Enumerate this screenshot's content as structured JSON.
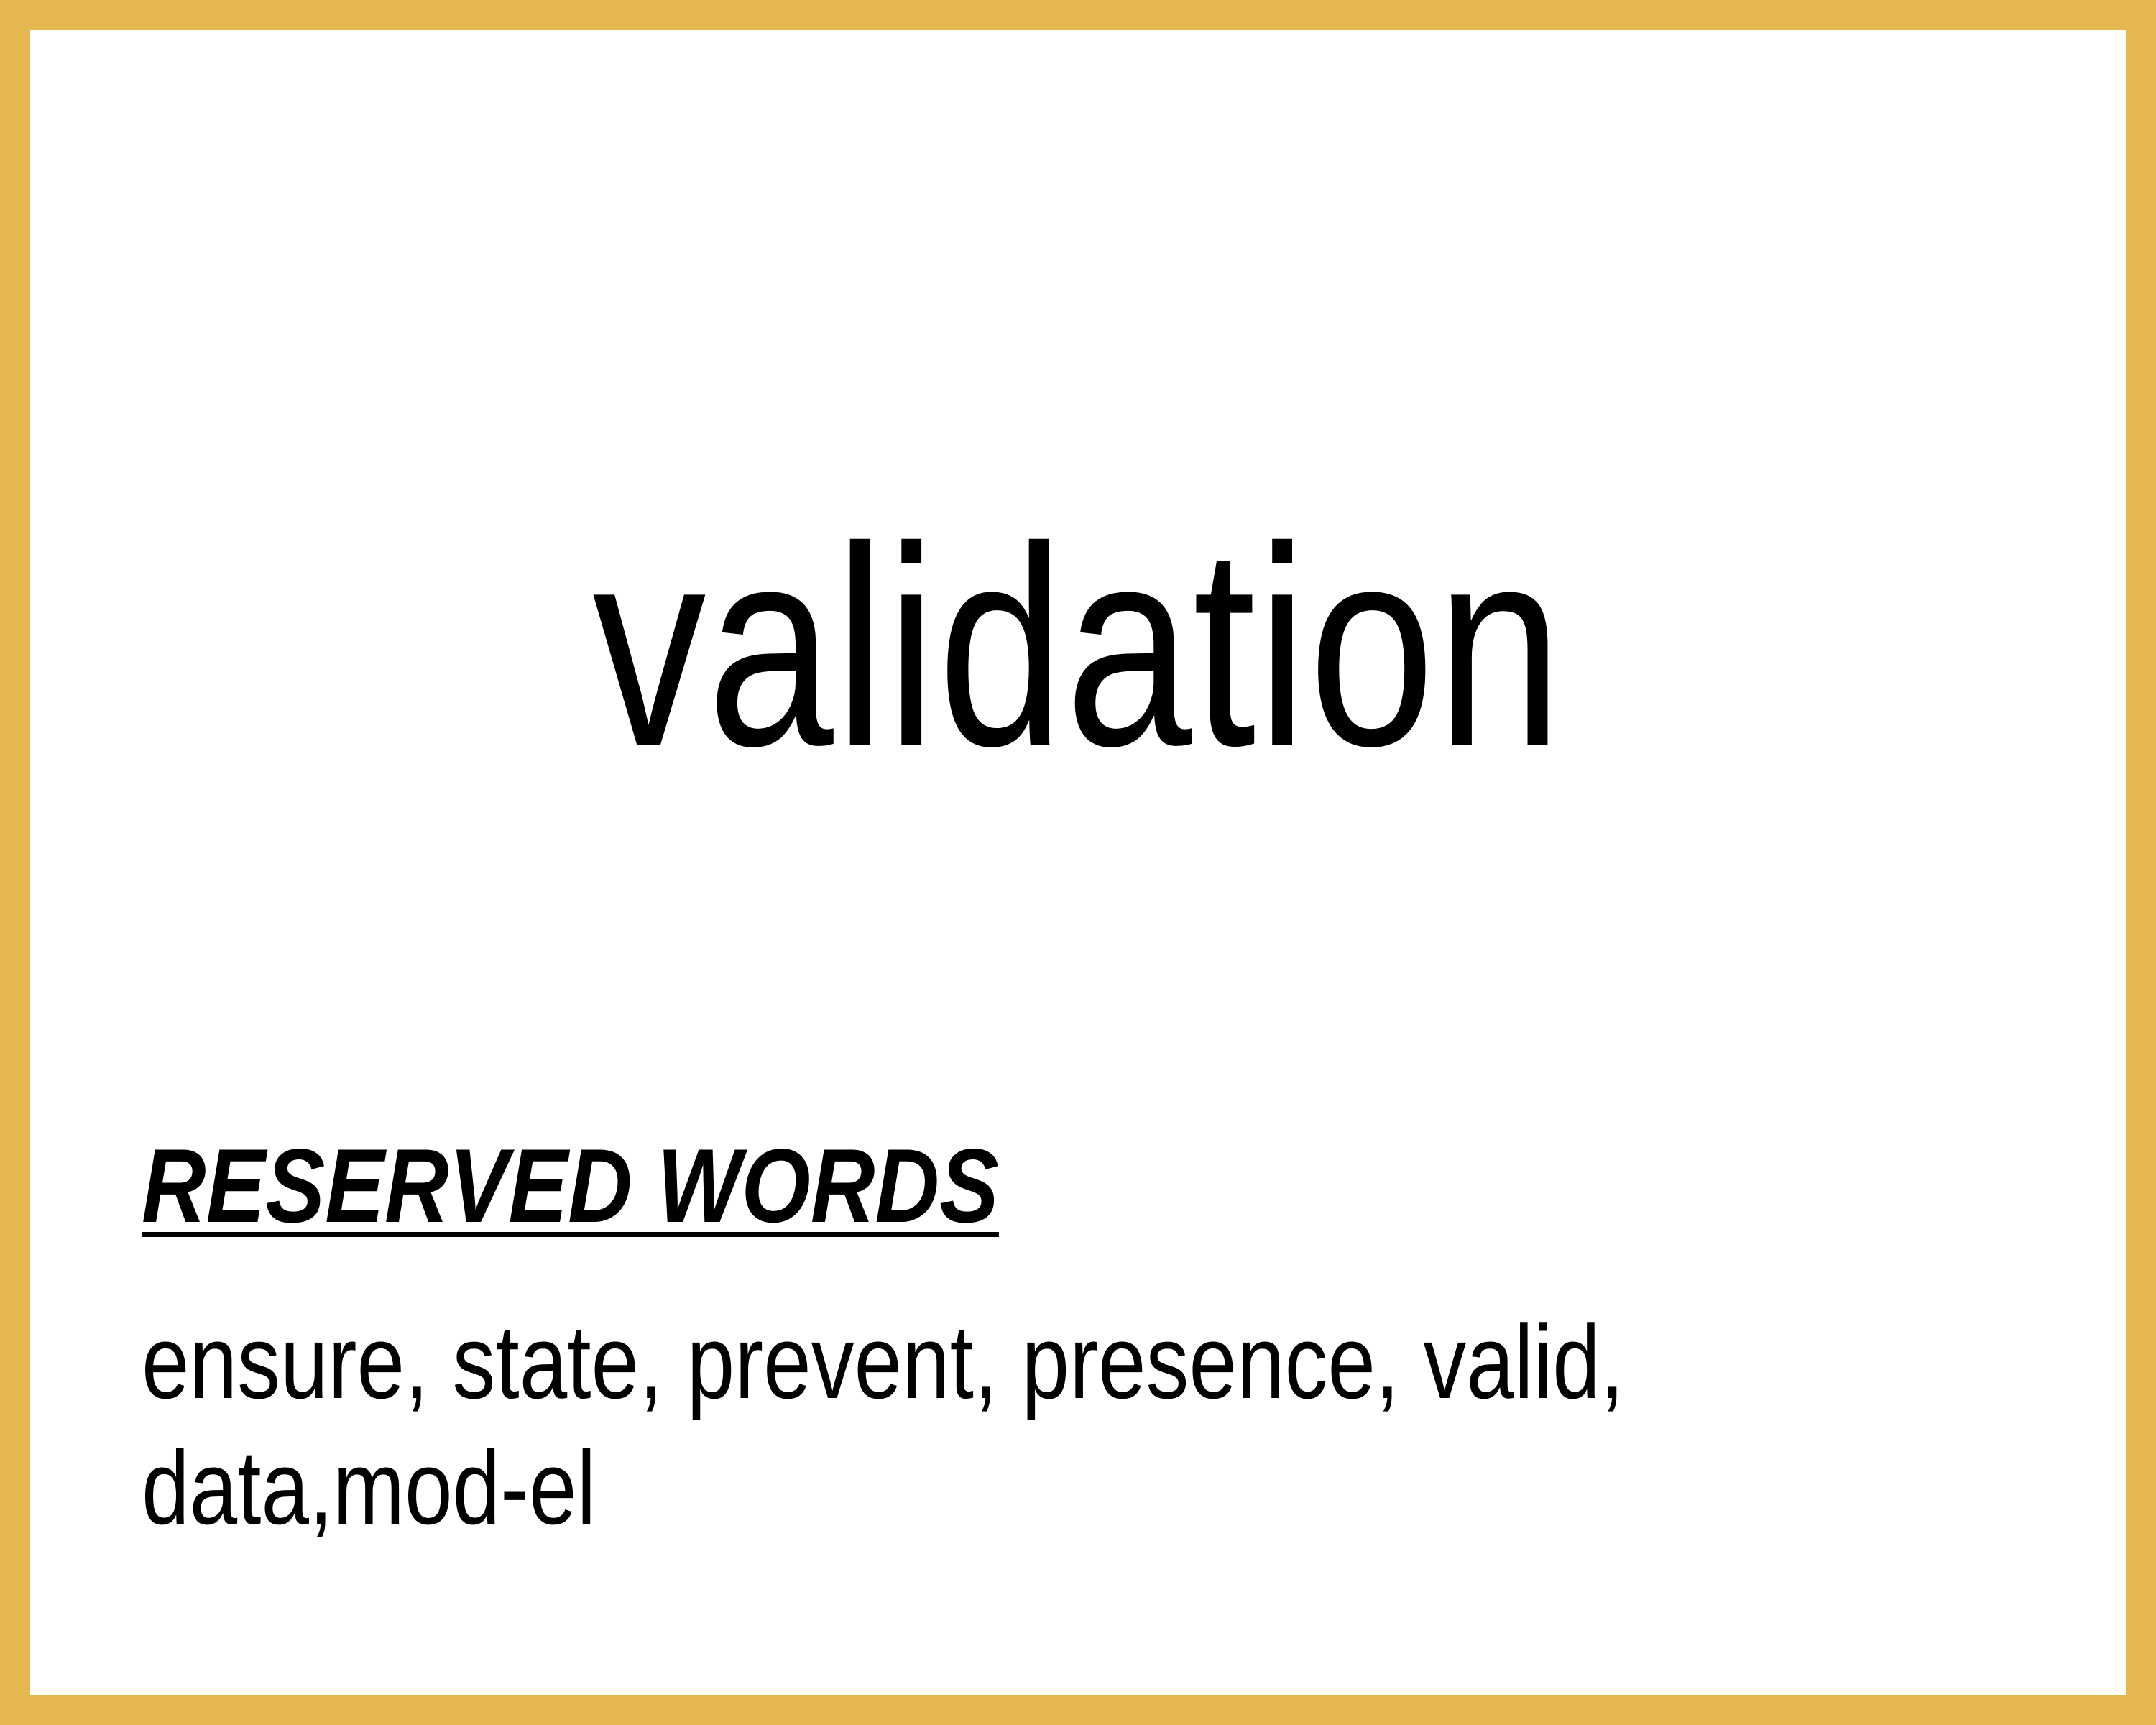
{
  "card": {
    "border_color": "#E4B84E",
    "background_color": "#FFFFFF"
  },
  "term": "validation",
  "reserved": {
    "heading": "RESERVED WORDS",
    "words": "ensure, state, prevent, presence, valid, data,mod-el"
  }
}
